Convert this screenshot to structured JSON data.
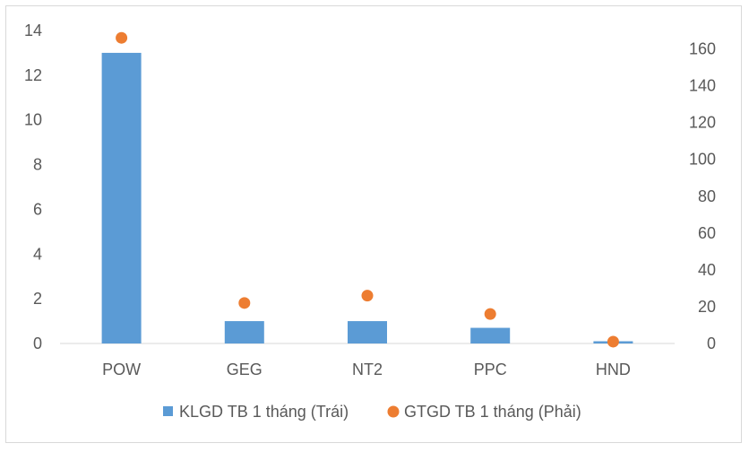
{
  "chart_data": {
    "type": "bar",
    "categories": [
      "POW",
      "GEG",
      "NT2",
      "PPC",
      "HND"
    ],
    "series": [
      {
        "name": "KLGD TB 1 tháng (Trái)",
        "type": "bar",
        "axis": "left",
        "color": "#5b9bd5",
        "values": [
          13.0,
          1.0,
          1.0,
          0.7,
          0.1
        ]
      },
      {
        "name": "GTGD TB 1 tháng (Phải)",
        "type": "scatter",
        "axis": "right",
        "color": "#ed7d31",
        "values": [
          166,
          22,
          26,
          16,
          1
        ]
      }
    ],
    "y_left": {
      "min": 0,
      "max": 14,
      "ticks": [
        0,
        2,
        4,
        6,
        8,
        10,
        12,
        14
      ]
    },
    "y_right": {
      "min": 0,
      "max": 170,
      "ticks": [
        0,
        20,
        40,
        60,
        80,
        100,
        120,
        140,
        160
      ]
    },
    "grid": false,
    "legend_position": "bottom",
    "title": "",
    "xlabel": "",
    "ylabel": ""
  }
}
